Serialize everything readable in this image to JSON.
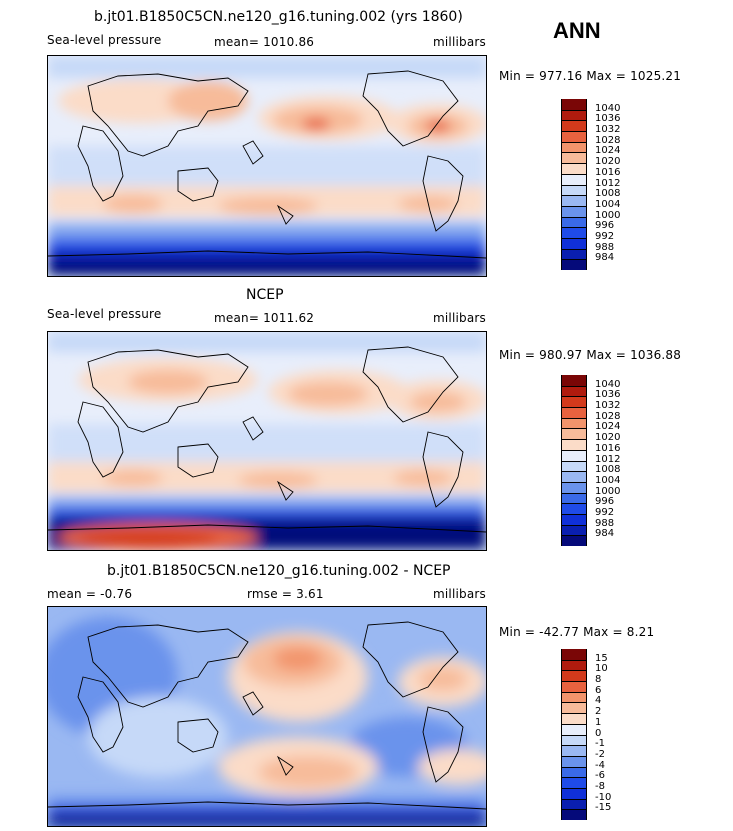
{
  "season": "ANN",
  "panels": [
    {
      "title": "b.jt01.B1850C5CN.ne120_g16.tuning.002 (yrs 1860)",
      "variable": "Sea-level pressure",
      "stat1": "mean= 1010.86",
      "stat2": "",
      "units": "millibars",
      "minmax": "Min = 977.16 Max = 1025.21",
      "colorbar_ticks": [
        "1040",
        "1036",
        "1032",
        "1028",
        "1024",
        "1020",
        "1016",
        "1012",
        "1008",
        "1004",
        "1000",
        "996",
        "992",
        "988",
        "984"
      ]
    },
    {
      "title": "NCEP",
      "variable": "Sea-level pressure",
      "stat1": "mean= 1011.62",
      "stat2": "",
      "units": "millibars",
      "minmax": "Min = 980.97 Max = 1036.88",
      "colorbar_ticks": [
        "1040",
        "1036",
        "1032",
        "1028",
        "1024",
        "1020",
        "1016",
        "1012",
        "1008",
        "1004",
        "1000",
        "996",
        "992",
        "988",
        "984"
      ]
    },
    {
      "title": "b.jt01.B1850C5CN.ne120_g16.tuning.002 - NCEP",
      "variable": "",
      "stat1": "mean = -0.76",
      "stat2": "rmse = 3.61",
      "units": "millibars",
      "minmax": "Min = -42.77 Max = 8.21",
      "colorbar_ticks": [
        "15",
        "10",
        "8",
        "6",
        "4",
        "2",
        "1",
        "0",
        "-1",
        "-2",
        "-4",
        "-6",
        "-8",
        "-10",
        "-15"
      ]
    }
  ],
  "chart_data": [
    {
      "type": "heatmap",
      "title": "b.jt01.B1850C5CN.ne120_g16.tuning.002 (yrs 1860)",
      "variable": "Sea-level pressure",
      "units": "millibars",
      "mean": 1010.86,
      "min": 977.16,
      "max": 1025.21,
      "levels": [
        984,
        988,
        992,
        996,
        1000,
        1004,
        1008,
        1012,
        1016,
        1020,
        1024,
        1028,
        1032,
        1036,
        1040
      ],
      "colors": [
        "#050a7a",
        "#0a1fb0",
        "#1030d8",
        "#1f4be8",
        "#3a6ae8",
        "#6a93ec",
        "#9ab8f2",
        "#c6d9f8",
        "#e8eefb",
        "#fbdcc8",
        "#f7bb9a",
        "#f2946c",
        "#e8623f",
        "#d33a1c",
        "#b01b0e",
        "#7a0606"
      ]
    },
    {
      "type": "heatmap",
      "title": "NCEP",
      "variable": "Sea-level pressure",
      "units": "millibars",
      "mean": 1011.62,
      "min": 980.97,
      "max": 1036.88,
      "levels": [
        984,
        988,
        992,
        996,
        1000,
        1004,
        1008,
        1012,
        1016,
        1020,
        1024,
        1028,
        1032,
        1036,
        1040
      ],
      "colors": [
        "#050a7a",
        "#0a1fb0",
        "#1030d8",
        "#1f4be8",
        "#3a6ae8",
        "#6a93ec",
        "#9ab8f2",
        "#c6d9f8",
        "#e8eefb",
        "#fbdcc8",
        "#f7bb9a",
        "#f2946c",
        "#e8623f",
        "#d33a1c",
        "#b01b0e",
        "#7a0606"
      ]
    },
    {
      "type": "heatmap",
      "title": "b.jt01.B1850C5CN.ne120_g16.tuning.002 - NCEP",
      "units": "millibars",
      "mean": -0.76,
      "rmse": 3.61,
      "min": -42.77,
      "max": 8.21,
      "levels": [
        -15,
        -10,
        -8,
        -6,
        -4,
        -2,
        -1,
        0,
        1,
        2,
        4,
        6,
        8,
        10,
        15
      ],
      "colors": [
        "#050a7a",
        "#0a1fb0",
        "#1030d8",
        "#1f4be8",
        "#3a6ae8",
        "#6a93ec",
        "#9ab8f2",
        "#c6d9f8",
        "#e8eefb",
        "#fbdcc8",
        "#f7bb9a",
        "#f2946c",
        "#e8623f",
        "#d33a1c",
        "#b01b0e",
        "#7a0606"
      ]
    }
  ]
}
